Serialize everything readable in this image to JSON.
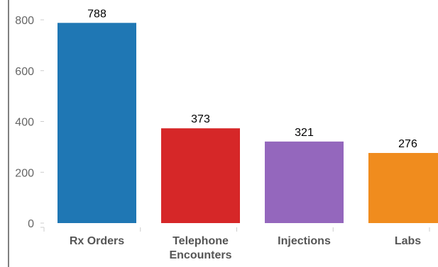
{
  "chart_data": {
    "type": "bar",
    "categories": [
      [
        "Rx Orders"
      ],
      [
        "Telephone",
        "Encounters"
      ],
      [
        "Injections"
      ],
      [
        "Labs"
      ]
    ],
    "values": [
      788,
      373,
      321,
      276
    ],
    "colors": [
      "#1f77b4",
      "#d62728",
      "#9467bd",
      "#f08c1e"
    ],
    "yticks": [
      0,
      200,
      400,
      600,
      800
    ],
    "ylim": [
      0,
      800
    ],
    "title": "",
    "xlabel": "",
    "ylabel": "",
    "grid": false,
    "legend": "none"
  }
}
